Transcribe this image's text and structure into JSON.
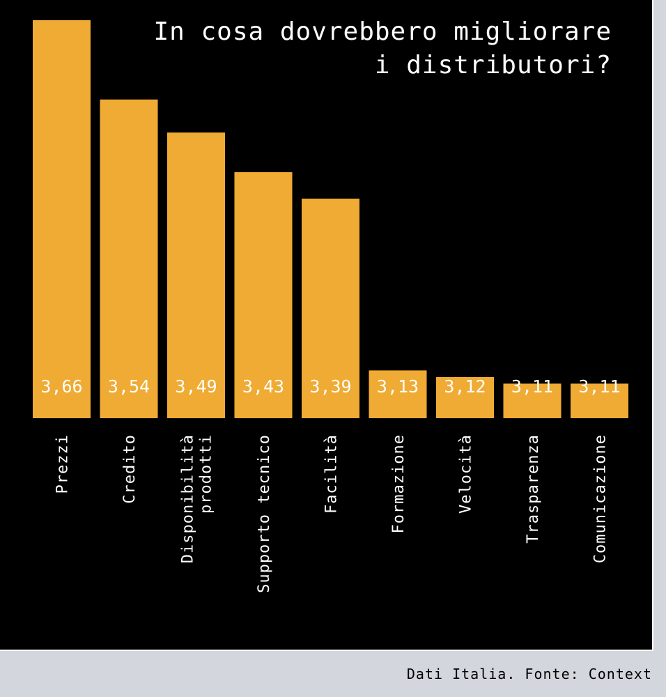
{
  "title_lines": [
    "In cosa dovrebbero migliorare",
    "i distributori?"
  ],
  "source": "Dati Italia. Fonte: Context",
  "colors": {
    "bar": "#efab33",
    "panel": "#000000",
    "label": "#ffffff",
    "page": "#d3d6dd"
  },
  "chart_data": {
    "type": "bar",
    "title": "In cosa dovrebbero migliorare i distributori?",
    "categories": [
      [
        "Prezzi"
      ],
      [
        "Credito"
      ],
      [
        "Disponibilità",
        "prodotti"
      ],
      [
        "Supporto tecnico"
      ],
      [
        "Facilità"
      ],
      [
        "Formazione"
      ],
      [
        "Velocità"
      ],
      [
        "Trasparenza"
      ],
      [
        "Comunicazione"
      ]
    ],
    "values": [
      3.66,
      3.54,
      3.49,
      3.43,
      3.39,
      3.13,
      3.12,
      3.11,
      3.11
    ],
    "value_labels": [
      "3,66",
      "3,54",
      "3,49",
      "3,43",
      "3,39",
      "3,13",
      "3,12",
      "3,11",
      "3,11"
    ],
    "orientation": "vertical",
    "category_label_rotation": "vertical",
    "grid": false,
    "legend": "none"
  }
}
